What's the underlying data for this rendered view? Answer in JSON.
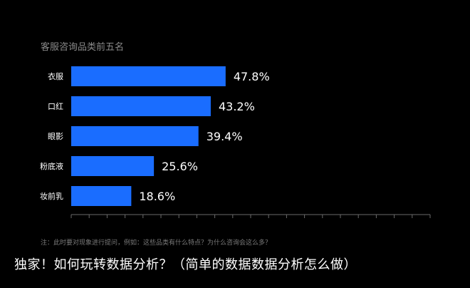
{
  "chart_data": {
    "type": "bar",
    "orientation": "horizontal",
    "title": "客服咨询品类前五名",
    "categories": [
      "衣服",
      "口红",
      "眼影",
      "粉底液",
      "妆前乳"
    ],
    "values": [
      47.8,
      43.2,
      39.4,
      25.6,
      18.6
    ],
    "value_labels": [
      "47.8%",
      "43.2%",
      "39.4%",
      "25.6%",
      "18.6%"
    ],
    "xlim": [
      0,
      100
    ],
    "grid": false,
    "bar_color": "#1a6dff",
    "note": "注：此时要对现象进行提问，例如：这些品类有什么特点？为什么咨询会这么多？"
  },
  "caption": "独家！如何玩转数据分析？（简单的数据数据分析怎么做）"
}
